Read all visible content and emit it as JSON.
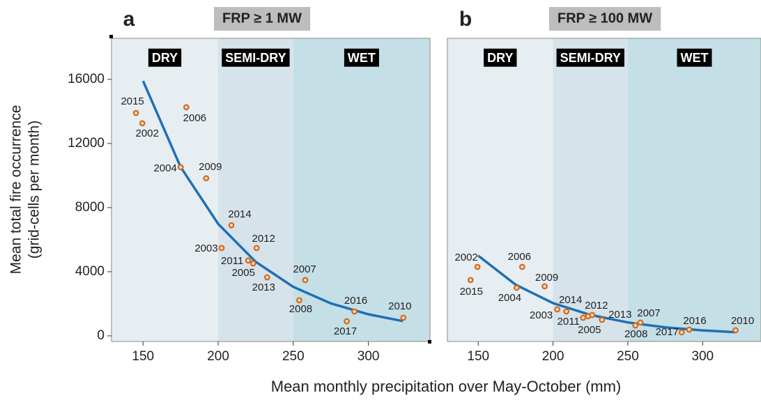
{
  "chart_data": [
    {
      "type": "scatter",
      "panel": "a",
      "title": "FRP ≥ 1 MW",
      "ylabel": [
        "Mean total fire occurrence",
        "(grid-cells per month)"
      ],
      "xlabel": "Mean monthly precipitation over May-October (mm)",
      "xlim": [
        129,
        341
      ],
      "xticks": [
        150,
        200,
        250,
        300
      ],
      "ylim": [
        -350,
        18560
      ],
      "yticks": [
        0,
        4000,
        8000,
        12000,
        16000
      ],
      "zone_breaks": [
        200,
        250
      ],
      "zone_labels": [
        "DRY",
        "SEMI-DRY",
        "WET"
      ],
      "zone_colors": [
        "#e6eef2",
        "#d6e3ea",
        "#c5dfe6"
      ],
      "point_color": "#d2691e",
      "labels": [
        "2015",
        "2002",
        "2006",
        "2004",
        "2009",
        "2014",
        "2003",
        "2012",
        "2011",
        "2005",
        "2013",
        "2007",
        "2008",
        "2016",
        "2017",
        "2010"
      ],
      "x": [
        145.3,
        149.5,
        178.8,
        175,
        192,
        208.8,
        202.3,
        225.6,
        220,
        223.3,
        232.6,
        258,
        254,
        290.7,
        285.6,
        323.3
      ],
      "values": [
        13900,
        13260,
        14260,
        10520,
        9830,
        6900,
        5480,
        5480,
        4700,
        4520,
        3650,
        3480,
        2220,
        1520,
        910,
        1130
      ],
      "fit": {
        "color": "#1f6fb5",
        "x": [
          150,
          175,
          200,
          225,
          250,
          275,
          300,
          323
        ],
        "values": [
          15900,
          10530,
          6980,
          4620,
          3060,
          2030,
          1345,
          920
        ]
      }
    },
    {
      "type": "scatter",
      "panel": "b",
      "title": "FRP ≥ 100 MW",
      "xlim": [
        129.4,
        339
      ],
      "xticks": [
        150,
        200,
        250,
        300
      ],
      "ylim": [
        -350,
        18560
      ],
      "zone_breaks": [
        200,
        250
      ],
      "zone_labels": [
        "DRY",
        "SEMI-DRY",
        "WET"
      ],
      "zone_colors": [
        "#e6eef2",
        "#d6e3ea",
        "#c5dfe6"
      ],
      "point_color": "#d2691e",
      "labels": [
        "2015",
        "2002",
        "2006",
        "2004",
        "2009",
        "2014",
        "2003",
        "2012",
        "2011",
        "2005",
        "2013",
        "2007",
        "2008",
        "2016",
        "2017",
        "2010"
      ],
      "x": [
        144.9,
        149.5,
        179.4,
        175.7,
        194.4,
        208.9,
        202.8,
        226.2,
        220.1,
        223.4,
        232.7,
        258.4,
        255,
        291,
        286,
        322
      ],
      "values": [
        3480,
        4300,
        4300,
        3000,
        3090,
        1520,
        1650,
        1300,
        1130,
        1220,
        1000,
        830,
        650,
        390,
        220,
        350
      ],
      "fit": {
        "color": "#1f6fb5",
        "x": [
          150,
          175,
          200,
          225,
          250,
          275,
          300,
          322
        ],
        "values": [
          5000,
          3195,
          2043,
          1306,
          835,
          534,
          341,
          230
        ]
      }
    }
  ]
}
